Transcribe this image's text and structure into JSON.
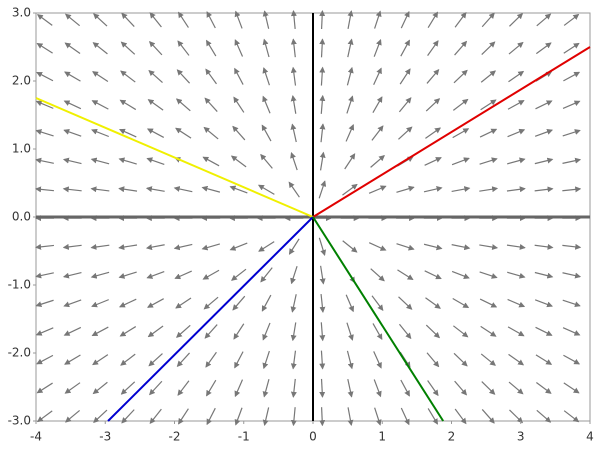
{
  "chart_data": {
    "type": "vector-field",
    "xlim": [
      -4,
      4
    ],
    "ylim": [
      -3,
      3
    ],
    "xticks": [
      -4,
      -3,
      -2,
      -1,
      0,
      1,
      2,
      3,
      4
    ],
    "yticks": [
      {
        "value": 3,
        "label": "3.0"
      },
      {
        "value": 2,
        "label": "2.0"
      },
      {
        "value": 1,
        "label": "1.0"
      },
      {
        "value": 0,
        "label": "0.0"
      },
      {
        "value": -1,
        "label": "-1.0"
      },
      {
        "value": -2,
        "label": "-2.0"
      },
      {
        "value": -3,
        "label": "-3.0"
      }
    ],
    "series": [
      {
        "color": "#e00000",
        "x": [
          0,
          4
        ],
        "values": [
          0,
          2.5
        ]
      },
      {
        "color": "#f0f000",
        "x": [
          0,
          -4
        ],
        "values": [
          0,
          1.75
        ]
      },
      {
        "color": "#0000d0",
        "x": [
          0,
          -2.96
        ],
        "values": [
          0,
          -3
        ]
      },
      {
        "color": "#008000",
        "x": [
          0,
          1.88
        ],
        "values": [
          0,
          -3
        ]
      }
    ]
  }
}
